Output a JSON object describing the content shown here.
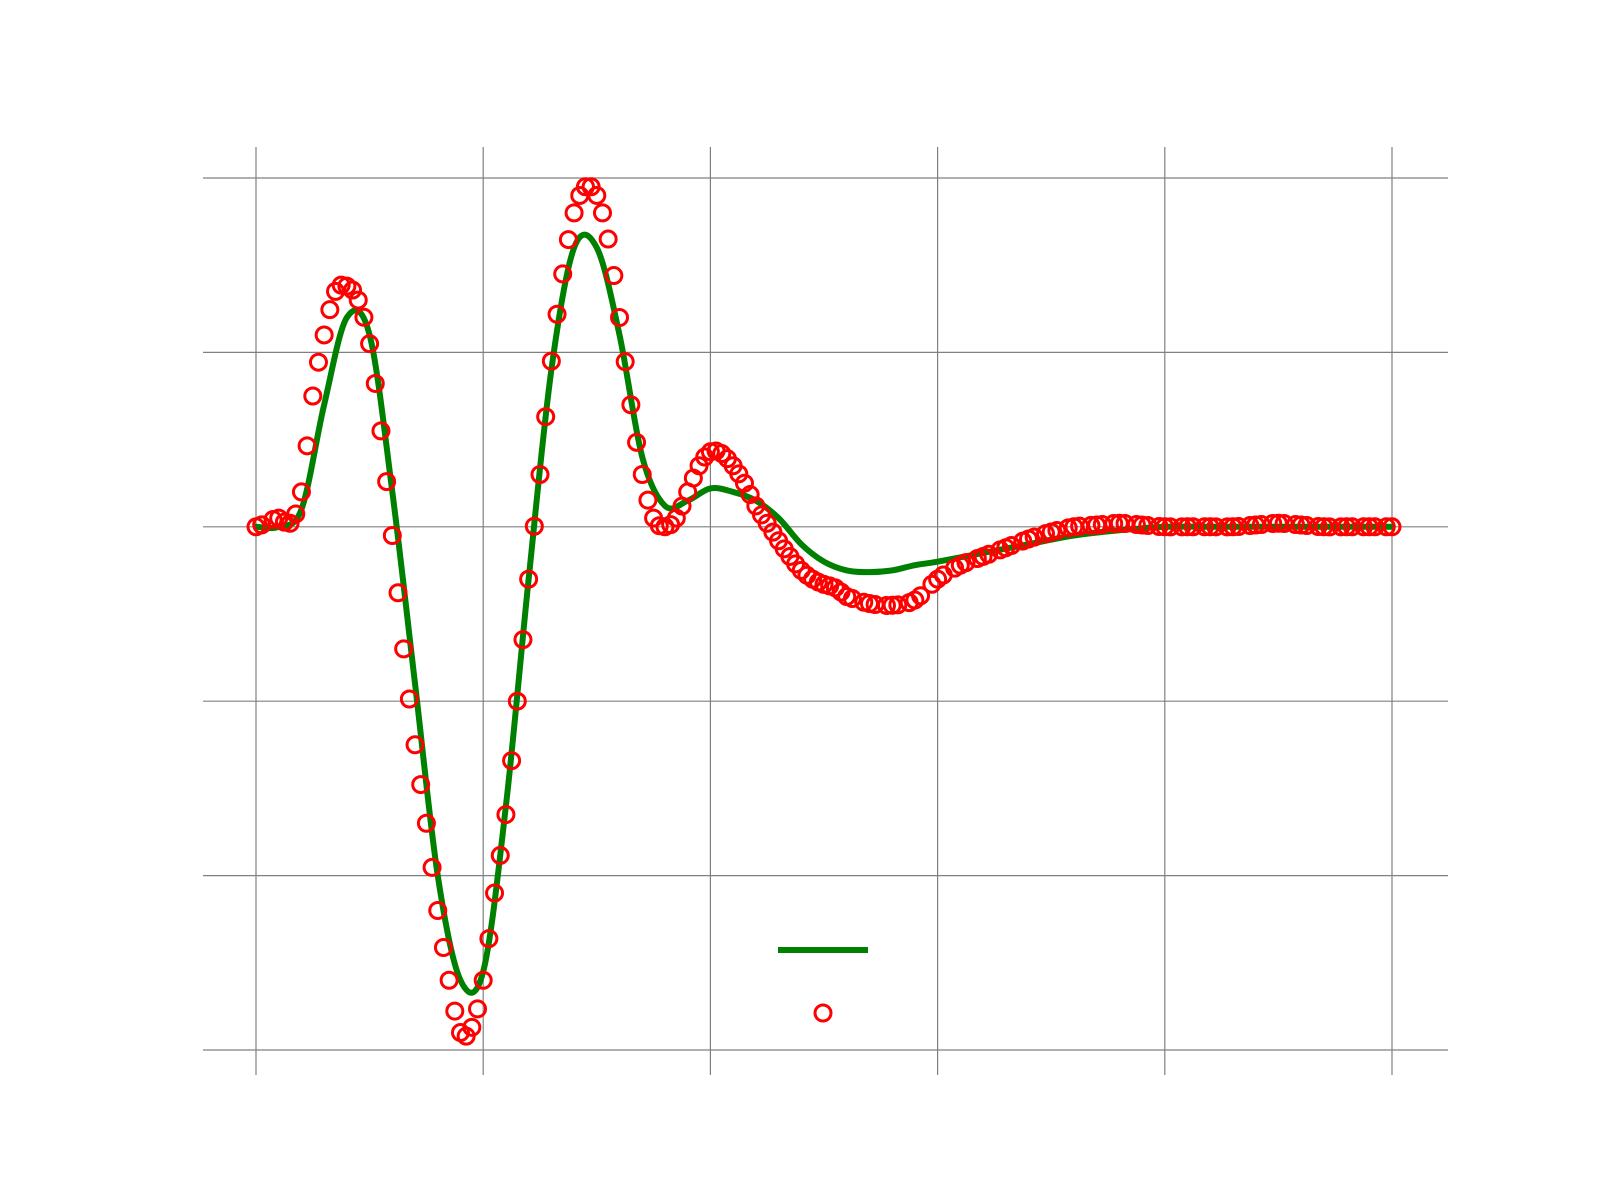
{
  "chart_data": {
    "type": "line",
    "title": "",
    "xlabel": "",
    "ylabel": "",
    "xlim": [
      0,
      5
    ],
    "ylim": [
      -3,
      2
    ],
    "x_ticks": [
      0,
      1,
      2,
      3,
      4,
      5
    ],
    "y_ticks": [
      -3,
      -2,
      -1,
      0,
      1,
      2
    ],
    "x_tick_labels": [
      "",
      "",
      "",
      "",
      "",
      ""
    ],
    "y_tick_labels": [
      "",
      "",
      "",
      "",
      "",
      ""
    ],
    "grid": true,
    "legend": {
      "placement": "lower-center",
      "entries": [
        "",
        ""
      ]
    },
    "colors": {
      "model": "#008000",
      "measured": "#ff0000",
      "grid": "#808080"
    },
    "series": [
      {
        "style": "line",
        "x": [
          0,
          0.1,
          0.2,
          0.3,
          0.4,
          0.5,
          0.6,
          0.7,
          0.8,
          0.9,
          1.0,
          1.1,
          1.2,
          1.3,
          1.4,
          1.5,
          1.6,
          1.7,
          1.8,
          1.9,
          2.0,
          2.1,
          2.2,
          2.3,
          2.4,
          2.5,
          2.6,
          2.7,
          2.8,
          2.9,
          3.0,
          3.2,
          3.4,
          3.6,
          3.8,
          4.0,
          4.2,
          4.4,
          4.6,
          4.8,
          5.0
        ],
        "y": [
          0,
          0,
          0.1,
          0.7,
          1.2,
          1.1,
          0.2,
          -0.9,
          -2.0,
          -2.6,
          -2.55,
          -1.6,
          -0.3,
          0.9,
          1.6,
          1.6,
          1.1,
          0.4,
          0.12,
          0.15,
          0.22,
          0.2,
          0.15,
          0.05,
          -0.1,
          -0.2,
          -0.25,
          -0.26,
          -0.25,
          -0.22,
          -0.2,
          -0.15,
          -0.1,
          -0.05,
          -0.02,
          0,
          0,
          0,
          0,
          0,
          0
        ]
      },
      {
        "style": "scatter",
        "x": [
          0,
          0.1,
          0.15,
          0.2,
          0.25,
          0.3,
          0.35,
          0.4,
          0.45,
          0.5,
          0.55,
          0.6,
          0.65,
          0.7,
          0.75,
          0.8,
          0.85,
          0.9,
          0.95,
          1.0,
          1.05,
          1.1,
          1.15,
          1.2,
          1.25,
          1.3,
          1.35,
          1.4,
          1.45,
          1.5,
          1.55,
          1.6,
          1.65,
          1.7,
          1.75,
          1.8,
          1.85,
          1.9,
          1.95,
          2.0,
          2.05,
          2.1,
          2.15,
          2.2,
          2.25,
          2.3,
          2.35,
          2.4,
          2.45,
          2.5,
          2.55,
          2.6,
          2.7,
          2.8,
          2.9,
          3.0,
          3.1,
          3.2,
          3.3,
          3.4,
          3.5,
          3.6,
          3.7,
          3.8,
          3.9,
          4.0,
          4.1,
          4.2,
          4.3,
          4.4,
          4.5,
          4.6,
          4.7,
          4.8,
          4.9,
          5.0
        ],
        "y": [
          0,
          0.05,
          0.02,
          0.2,
          0.75,
          1.1,
          1.35,
          1.38,
          1.3,
          1.05,
          0.55,
          -0.05,
          -0.7,
          -1.25,
          -1.7,
          -2.2,
          -2.6,
          -2.9,
          -2.87,
          -2.6,
          -2.1,
          -1.65,
          -1.0,
          -0.3,
          0.3,
          0.95,
          1.45,
          1.8,
          1.95,
          1.9,
          1.65,
          1.2,
          0.7,
          0.3,
          0.05,
          0.0,
          0.05,
          0.2,
          0.35,
          0.43,
          0.42,
          0.35,
          0.25,
          0.12,
          0.02,
          -0.08,
          -0.17,
          -0.25,
          -0.3,
          -0.33,
          -0.35,
          -0.4,
          -0.44,
          -0.45,
          -0.42,
          -0.3,
          -0.22,
          -0.17,
          -0.12,
          -0.07,
          -0.03,
          0.0,
          0.01,
          0.02,
          0.01,
          0,
          0,
          0,
          0,
          0.01,
          0.02,
          0.01,
          0,
          0,
          0,
          0
        ]
      }
    ]
  }
}
